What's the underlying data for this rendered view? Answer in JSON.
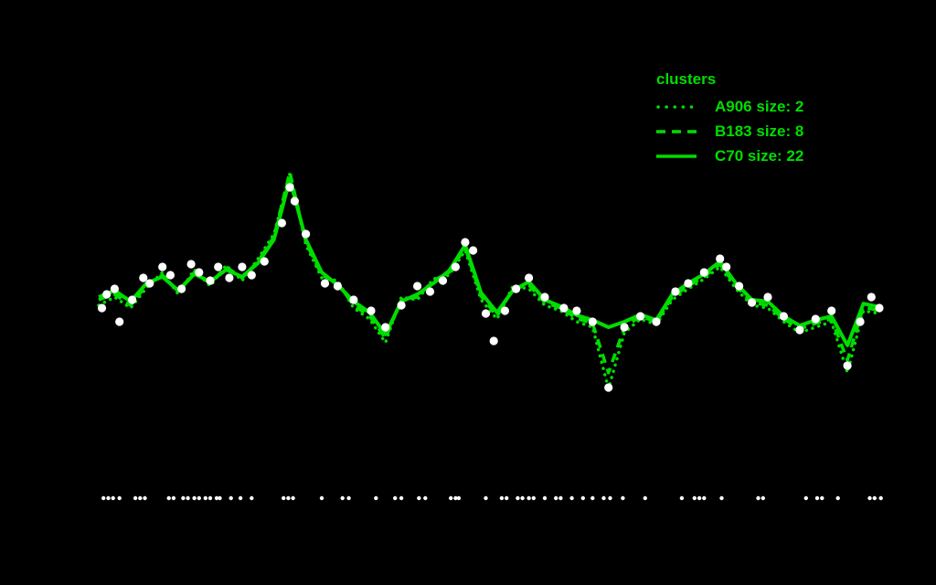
{
  "page": {
    "background": "#000000"
  },
  "chart_data": {
    "type": "line",
    "title": "",
    "axes_visible": false,
    "legend": {
      "title": "clusters",
      "position": "top-right",
      "entries": [
        {
          "label": "A906 size: 2",
          "style": "dotted"
        },
        {
          "label": "B183 size: 8",
          "style": "dashed"
        },
        {
          "label": "C70 size: 22",
          "style": "solid"
        }
      ]
    },
    "colors": {
      "line": "#00dd00",
      "points": "#ffffff",
      "background": "#000000"
    },
    "xlim": [
      0,
      49
    ],
    "ylim": [
      0,
      8
    ],
    "x": [
      0,
      1,
      2,
      3,
      4,
      5,
      6,
      7,
      8,
      9,
      10,
      11,
      12,
      13,
      14,
      15,
      16,
      17,
      18,
      19,
      20,
      21,
      22,
      23,
      24,
      25,
      26,
      27,
      28,
      29,
      30,
      31,
      32,
      33,
      34,
      35,
      36,
      37,
      38,
      39,
      40,
      41,
      42,
      43,
      44,
      45,
      46,
      47,
      48,
      49
    ],
    "series": [
      {
        "name": "A906",
        "size": 2,
        "style": "dotted",
        "values": [
          4.6,
          4.75,
          4.55,
          4.92,
          5.2,
          4.8,
          5.25,
          4.95,
          5.33,
          5.05,
          5.45,
          5.9,
          7.0,
          5.7,
          5.1,
          5.05,
          4.55,
          4.35,
          3.92,
          4.75,
          4.7,
          5.08,
          5.15,
          5.6,
          4.7,
          4.35,
          4.95,
          4.9,
          4.6,
          4.5,
          4.3,
          4.2,
          3.08,
          4.1,
          4.35,
          4.25,
          4.7,
          4.9,
          5.08,
          5.3,
          4.9,
          4.6,
          4.55,
          4.3,
          4.1,
          4.2,
          4.3,
          3.37,
          4.5,
          4.45
        ]
      },
      {
        "name": "B183",
        "size": 8,
        "style": "dashed",
        "values": [
          4.7,
          4.8,
          4.6,
          4.97,
          5.15,
          4.85,
          5.2,
          5.0,
          5.3,
          5.1,
          5.4,
          5.85,
          7.03,
          5.75,
          5.15,
          5.0,
          4.6,
          4.4,
          4.0,
          4.7,
          4.75,
          5.05,
          5.2,
          5.65,
          4.77,
          4.4,
          4.9,
          4.97,
          4.65,
          4.55,
          4.36,
          4.27,
          3.37,
          4.2,
          4.4,
          4.3,
          4.75,
          4.95,
          5.12,
          5.35,
          4.95,
          4.65,
          4.6,
          4.35,
          4.17,
          4.27,
          4.35,
          3.6,
          4.57,
          4.5
        ]
      },
      {
        "name": "C70",
        "size": 22,
        "style": "solid",
        "values": [
          4.75,
          4.87,
          4.67,
          5.0,
          5.12,
          4.87,
          5.17,
          5.03,
          5.25,
          5.12,
          5.37,
          5.8,
          6.9,
          5.8,
          5.2,
          4.97,
          4.67,
          4.47,
          4.07,
          4.67,
          4.8,
          5.0,
          5.23,
          5.7,
          4.83,
          4.47,
          4.87,
          5.03,
          4.7,
          4.58,
          4.42,
          4.33,
          4.2,
          4.3,
          4.43,
          4.33,
          4.8,
          5.0,
          5.17,
          5.4,
          5.0,
          4.7,
          4.67,
          4.4,
          4.23,
          4.33,
          4.4,
          3.87,
          4.63,
          4.57
        ]
      }
    ],
    "scatter_points": [
      [
        0.2,
        4.55
      ],
      [
        0.5,
        4.8
      ],
      [
        1.0,
        4.9
      ],
      [
        1.3,
        4.3
      ],
      [
        2.1,
        4.7
      ],
      [
        2.8,
        5.1
      ],
      [
        3.2,
        5.0
      ],
      [
        4.0,
        5.3
      ],
      [
        4.5,
        5.15
      ],
      [
        5.2,
        4.9
      ],
      [
        5.8,
        5.35
      ],
      [
        6.3,
        5.2
      ],
      [
        7.0,
        5.05
      ],
      [
        7.5,
        5.3
      ],
      [
        8.2,
        5.1
      ],
      [
        9.0,
        5.3
      ],
      [
        9.6,
        5.15
      ],
      [
        10.4,
        5.4
      ],
      [
        11.5,
        6.1
      ],
      [
        12.0,
        6.75
      ],
      [
        12.3,
        6.5
      ],
      [
        13.0,
        5.9
      ],
      [
        14.2,
        5.0
      ],
      [
        15.0,
        4.95
      ],
      [
        16.0,
        4.7
      ],
      [
        17.1,
        4.5
      ],
      [
        18.0,
        4.2
      ],
      [
        19.0,
        4.6
      ],
      [
        20.0,
        4.95
      ],
      [
        20.8,
        4.85
      ],
      [
        21.6,
        5.05
      ],
      [
        22.4,
        5.3
      ],
      [
        23.0,
        5.75
      ],
      [
        23.5,
        5.6
      ],
      [
        24.3,
        4.45
      ],
      [
        24.8,
        3.95
      ],
      [
        25.5,
        4.5
      ],
      [
        26.2,
        4.9
      ],
      [
        27.0,
        5.1
      ],
      [
        28.0,
        4.75
      ],
      [
        29.2,
        4.55
      ],
      [
        30.0,
        4.5
      ],
      [
        31.0,
        4.3
      ],
      [
        32.0,
        3.1
      ],
      [
        33.0,
        4.2
      ],
      [
        34.0,
        4.4
      ],
      [
        35.0,
        4.3
      ],
      [
        36.2,
        4.85
      ],
      [
        37.0,
        5.0
      ],
      [
        38.0,
        5.2
      ],
      [
        39.0,
        5.45
      ],
      [
        39.4,
        5.3
      ],
      [
        40.2,
        4.95
      ],
      [
        41.0,
        4.65
      ],
      [
        42.0,
        4.75
      ],
      [
        43.0,
        4.4
      ],
      [
        44.0,
        4.15
      ],
      [
        45.0,
        4.35
      ],
      [
        46.0,
        4.5
      ],
      [
        47.0,
        3.5
      ],
      [
        47.8,
        4.3
      ],
      [
        48.5,
        4.75
      ],
      [
        49.0,
        4.55
      ]
    ],
    "rug_x": [
      0.3,
      0.6,
      0.9,
      1.3,
      2.3,
      2.6,
      2.9,
      4.4,
      4.7,
      5.3,
      5.6,
      6.0,
      6.3,
      6.7,
      7.0,
      7.4,
      7.6,
      8.3,
      8.9,
      9.6,
      11.6,
      11.9,
      12.2,
      14.0,
      15.3,
      15.7,
      17.4,
      18.6,
      19.0,
      20.1,
      20.5,
      22.1,
      22.4,
      22.6,
      24.3,
      25.3,
      25.6,
      26.3,
      26.6,
      27.0,
      27.3,
      28.0,
      28.7,
      29.0,
      29.7,
      30.4,
      31.0,
      31.7,
      32.1,
      32.9,
      34.3,
      36.6,
      37.4,
      37.7,
      38.0,
      39.1,
      41.4,
      41.7,
      44.4,
      45.1,
      45.4,
      46.4,
      48.4,
      48.7,
      49.1
    ]
  }
}
